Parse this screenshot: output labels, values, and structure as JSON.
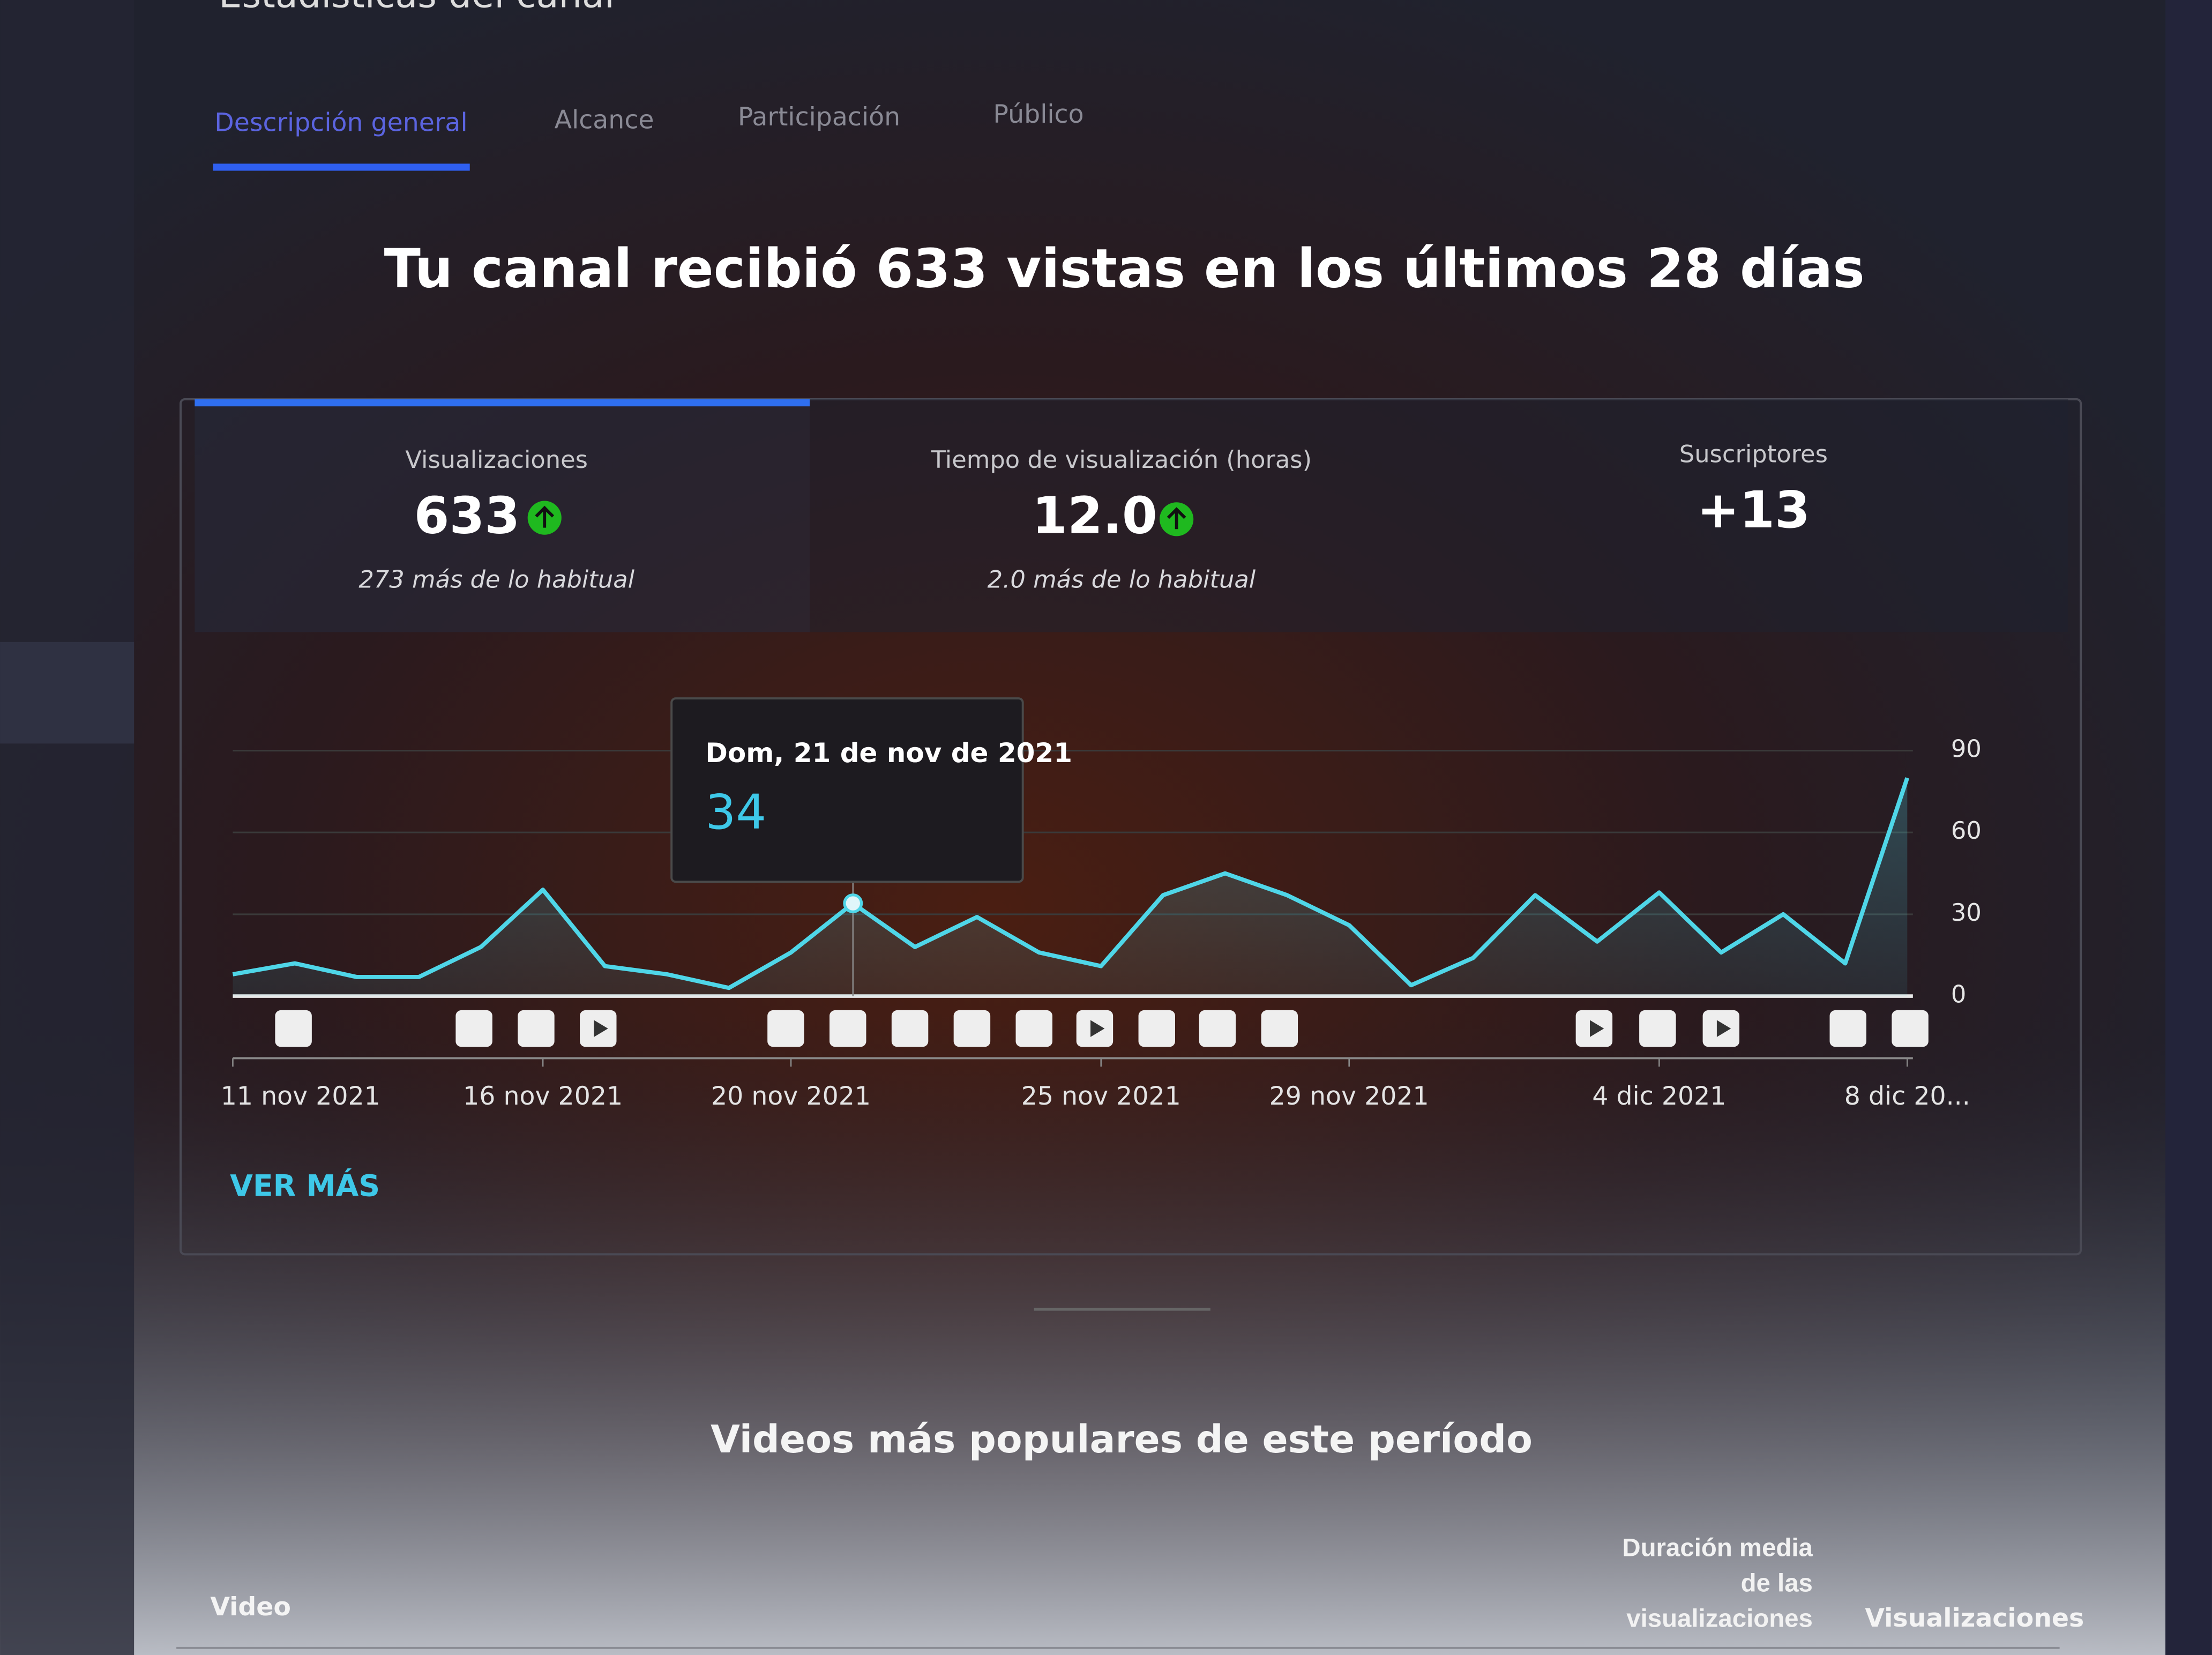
{
  "header": {
    "title": "Estadísticas del canal"
  },
  "tabs": [
    "Descripción general",
    "Alcance",
    "Participación",
    "Público"
  ],
  "headline": "Tu canal recibió 633 vistas en los últimos 28 días",
  "metrics": [
    {
      "label": "Visualizaciones",
      "value": "633",
      "note": "273 más de lo habitual"
    },
    {
      "label": "Tiempo de visualización (horas)",
      "value": "12.0",
      "note": "2.0 más de lo habitual"
    },
    {
      "label": "Suscriptores",
      "value": "+13"
    }
  ],
  "chart_data": {
    "type": "line",
    "categories": [
      "11 nov 2021",
      null,
      null,
      null,
      null,
      "16 nov 2021",
      null,
      null,
      null,
      "20 nov 2021",
      null,
      null,
      null,
      null,
      "25 nov 2021",
      null,
      null,
      null,
      "29 nov 2021",
      null,
      null,
      null,
      null,
      "4 dic 2021",
      null,
      null,
      null,
      "8 dic 20..."
    ],
    "values": [
      8,
      12,
      7,
      7,
      18,
      39,
      11,
      8,
      3,
      16,
      34,
      18,
      29,
      16,
      11,
      37,
      45,
      37,
      26,
      4,
      14,
      37,
      20,
      38,
      16,
      30,
      12,
      80
    ],
    "color": "#4fd6e8",
    "ylim": [
      0,
      90
    ],
    "yticks": [
      0,
      30,
      60,
      90
    ],
    "grid": true,
    "tooltip": {
      "title": "Dom, 21 de nov de 2021",
      "value": 34
    }
  },
  "see_more": "VER MÁS",
  "top_videos": {
    "title": "Videos más populares de este período",
    "columns": [
      "Video",
      "Duración media de las visualizaciones",
      "Visualizaciones"
    ]
  }
}
